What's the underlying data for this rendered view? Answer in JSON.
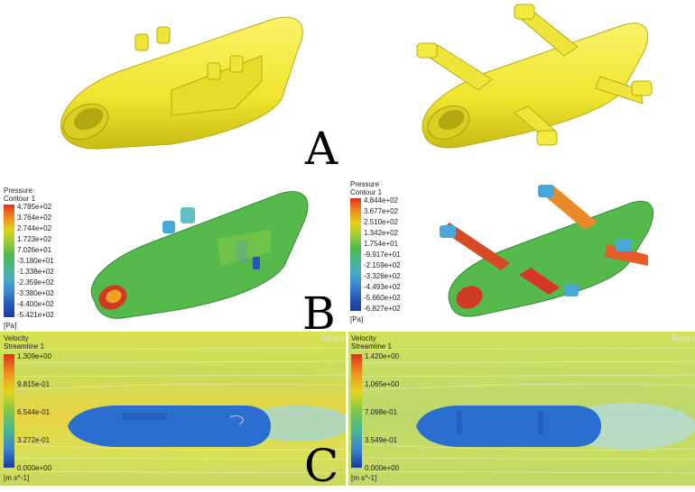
{
  "figure": {
    "labels": {
      "a": "A",
      "b": "B",
      "c": "C"
    }
  },
  "pressure_left": {
    "title": [
      "Pressure",
      "Contour 1"
    ],
    "ticks": [
      "4.785e+02",
      "3.764e+02",
      "2.744e+02",
      "1.723e+02",
      "7.026e+01",
      "-3.180e+01",
      "-1.338e+02",
      "-2.359e+02",
      "-3.380e+02",
      "-4.400e+02",
      "-5.421e+02"
    ],
    "unit": "[Pa]"
  },
  "pressure_right": {
    "title": [
      "Pressure",
      "Contour 1"
    ],
    "ticks": [
      "4.844e+02",
      "3.677e+02",
      "2.510e+02",
      "1.342e+02",
      "1.754e+01",
      "-9.917e+01",
      "-2.159e+02",
      "-3.326e+02",
      "-4.493e+02",
      "-5.660e+02",
      "-6.827e+02"
    ],
    "unit": "[Pa]"
  },
  "velocity_left": {
    "title": [
      "Velocity",
      "Streamline 1"
    ],
    "ticks": [
      "1.309e+00",
      "9.815e-01",
      "6.544e-01",
      "3.272e-01",
      "0.000e+00"
    ],
    "unit": "[m s^-1]",
    "brand": "Ansys"
  },
  "velocity_right": {
    "title": [
      "Velocity",
      "Streamline 1"
    ],
    "ticks": [
      "1.420e+00",
      "1.065e+00",
      "7.098e-01",
      "3.549e-01",
      "0.000e+00"
    ],
    "unit": "[m s^-1]",
    "brand": "Ansys"
  },
  "colors": {
    "hull_yellow": "#f2ea3a",
    "hull_shade": "#c9bf1c",
    "pressure_green": "#55b94a",
    "body_blue": "#2a6fd0",
    "field_yellow": "#e8e24a"
  }
}
